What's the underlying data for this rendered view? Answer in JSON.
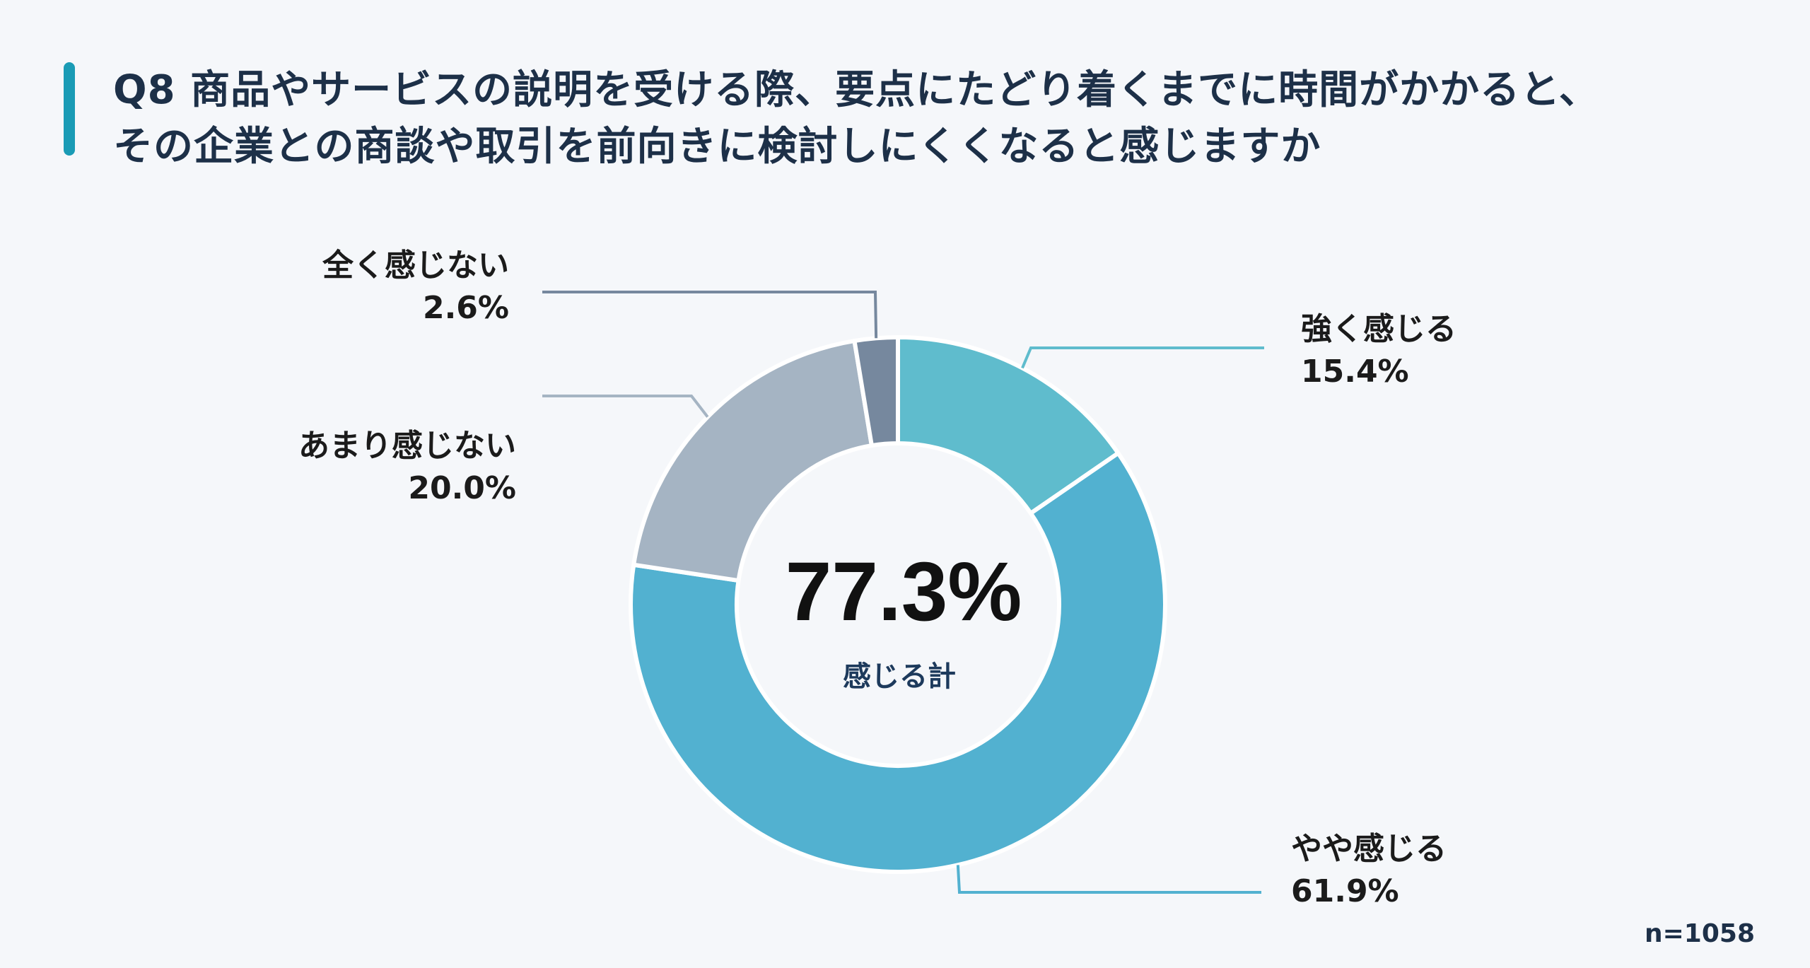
{
  "title_lines": [
    "Q8 商品やサービスの説明を受ける際、要点にたどり着くまでに時間がかかると、",
    "その企業との商談や取引を前向きに検討しにくくなると感じますか"
  ],
  "sample_size": "n=1058",
  "chart_data": {
    "type": "pie",
    "variant": "donut",
    "start": "top",
    "direction": "clockwise",
    "slices": [
      {
        "label": "強く感じる",
        "value": 15.4,
        "value_label": "15.4%",
        "color": "#5fbccd"
      },
      {
        "label": "やや感じる",
        "value": 61.9,
        "value_label": "61.9%",
        "color": "#52b1d0"
      },
      {
        "label": "あまり感じない",
        "value": 20.0,
        "value_label": "20.0%",
        "color": "#a5b4c3"
      },
      {
        "label": "全く感じない",
        "value": 2.6,
        "value_label": "2.6%",
        "color": "#76889e"
      }
    ],
    "center": {
      "value": "77.3%",
      "label": "感じる計"
    }
  }
}
